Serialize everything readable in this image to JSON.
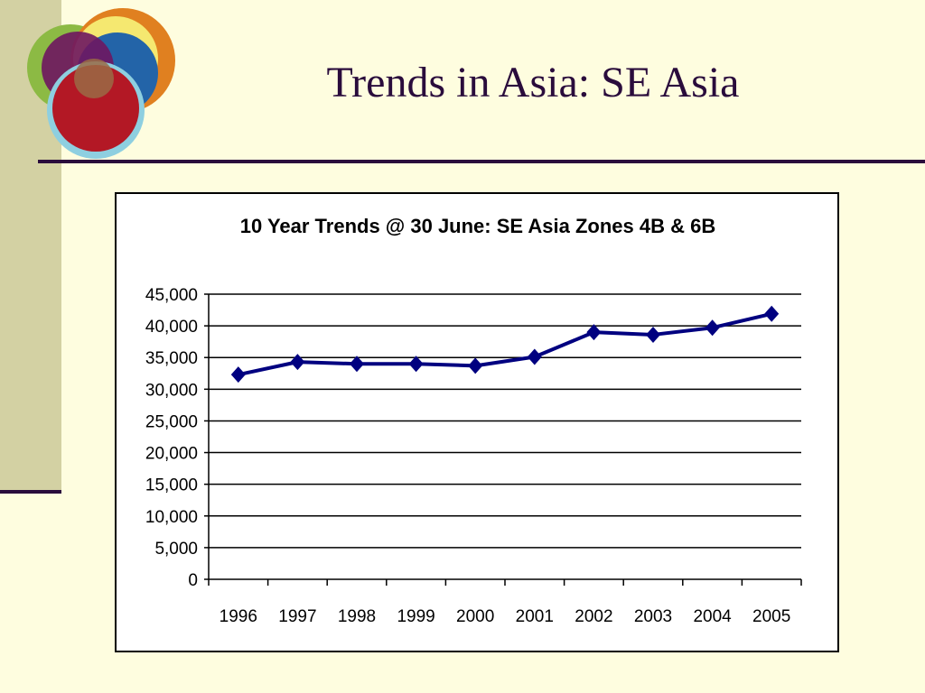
{
  "slide": {
    "title": "Trends in Asia: SE Asia"
  },
  "colors": {
    "background": "#fefddf",
    "accent_band": "#d3d1a3",
    "rule": "#2a0c3c",
    "series_line": "#000080"
  },
  "chart_data": {
    "type": "line",
    "title": "10 Year Trends @ 30 June:  SE Asia Zones 4B & 6B",
    "xlabel": "",
    "ylabel": "",
    "categories": [
      "1996",
      "1997",
      "1998",
      "1999",
      "2000",
      "2001",
      "2002",
      "2003",
      "2004",
      "2005"
    ],
    "series": [
      {
        "values": [
          32300,
          34300,
          34000,
          34000,
          33700,
          35100,
          39000,
          38600,
          39700,
          41900
        ],
        "color": "#000080",
        "marker": "diamond"
      }
    ],
    "ylim": [
      0,
      45000
    ],
    "yticks": [
      "0",
      "5,000",
      "10,000",
      "15,000",
      "20,000",
      "25,000",
      "30,000",
      "35,000",
      "40,000",
      "45,000"
    ],
    "ytick_values": [
      0,
      5000,
      10000,
      15000,
      20000,
      25000,
      30000,
      35000,
      40000,
      45000
    ],
    "grid": true,
    "legend": "none"
  }
}
